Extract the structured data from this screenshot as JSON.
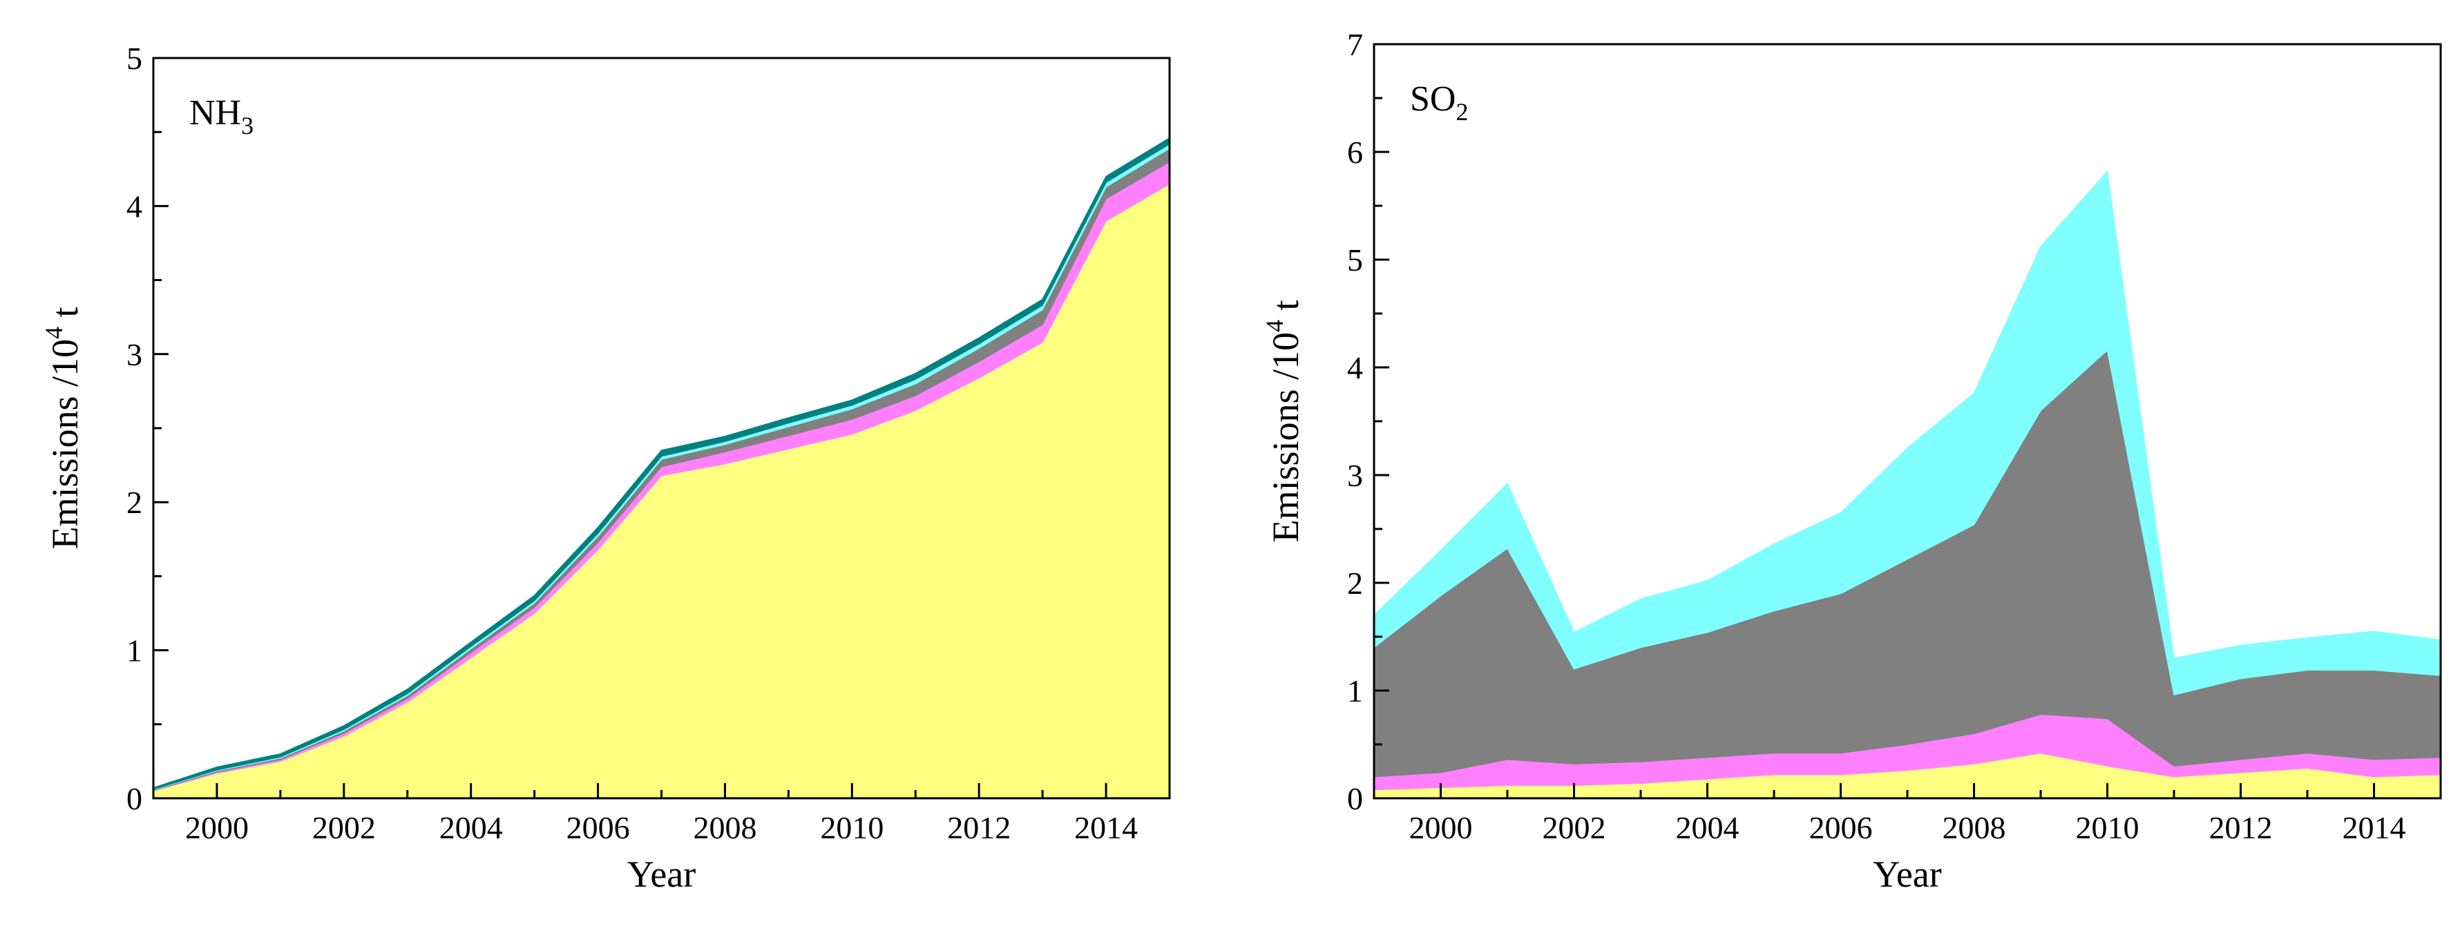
{
  "chart_data": [
    {
      "type": "area",
      "stacked": true,
      "label_main": "NH",
      "label_sub": "3",
      "xlabel": "Year",
      "ylabel_main": "Emissions /10",
      "ylabel_sup": "4",
      "ylabel_unit": " t",
      "xlim": [
        1999,
        2015
      ],
      "ylim": [
        0,
        5
      ],
      "xticks": [
        2000,
        2002,
        2004,
        2006,
        2008,
        2010,
        2012,
        2014
      ],
      "yticks": [
        0,
        1,
        2,
        3,
        4,
        5
      ],
      "x": [
        1999,
        2000,
        2001,
        2002,
        2003,
        2004,
        2005,
        2006,
        2007,
        2008,
        2009,
        2010,
        2011,
        2012,
        2013,
        2014,
        2015
      ],
      "series": [
        {
          "name": "yellow",
          "color": "#FFFF80",
          "values": [
            0.05,
            0.17,
            0.25,
            0.42,
            0.65,
            0.95,
            1.25,
            1.68,
            2.18,
            2.26,
            2.36,
            2.46,
            2.62,
            2.84,
            3.08,
            3.9,
            4.15
          ]
        },
        {
          "name": "magenta",
          "color": "#FF80FF",
          "values": [
            0.004,
            0.008,
            0.012,
            0.02,
            0.025,
            0.035,
            0.04,
            0.05,
            0.06,
            0.08,
            0.09,
            0.1,
            0.1,
            0.11,
            0.12,
            0.15,
            0.15
          ]
        },
        {
          "name": "gray",
          "color": "#808080",
          "values": [
            0.004,
            0.008,
            0.01,
            0.015,
            0.02,
            0.025,
            0.03,
            0.04,
            0.05,
            0.05,
            0.06,
            0.07,
            0.08,
            0.09,
            0.1,
            0.08,
            0.09
          ]
        },
        {
          "name": "cyan",
          "color": "#80FFFF",
          "values": [
            0.003,
            0.005,
            0.008,
            0.01,
            0.012,
            0.015,
            0.015,
            0.02,
            0.02,
            0.02,
            0.025,
            0.025,
            0.03,
            0.03,
            0.03,
            0.03,
            0.03
          ]
        },
        {
          "name": "teal",
          "color": "#008080",
          "values": [
            0.01,
            0.02,
            0.02,
            0.025,
            0.03,
            0.03,
            0.035,
            0.04,
            0.04,
            0.035,
            0.035,
            0.035,
            0.04,
            0.04,
            0.04,
            0.04,
            0.04
          ]
        }
      ]
    },
    {
      "type": "area",
      "stacked": true,
      "label_main": "SO",
      "label_sub": "2",
      "xlabel": "Year",
      "ylabel_main": "Emissions /10",
      "ylabel_sup": "4",
      "ylabel_unit": " t",
      "xlim": [
        1999,
        2015
      ],
      "ylim": [
        0,
        7
      ],
      "xticks": [
        2000,
        2002,
        2004,
        2006,
        2008,
        2010,
        2012,
        2014
      ],
      "yticks": [
        0,
        1,
        2,
        3,
        4,
        5,
        6,
        7
      ],
      "x": [
        1999,
        2000,
        2001,
        2002,
        2003,
        2004,
        2005,
        2006,
        2007,
        2008,
        2009,
        2010,
        2011,
        2012,
        2013,
        2014,
        2015
      ],
      "series": [
        {
          "name": "yellow",
          "color": "#FFFF80",
          "values": [
            0.08,
            0.1,
            0.12,
            0.12,
            0.14,
            0.18,
            0.22,
            0.22,
            0.26,
            0.32,
            0.42,
            0.3,
            0.2,
            0.24,
            0.28,
            0.2,
            0.22
          ]
        },
        {
          "name": "magenta",
          "color": "#FF80FF",
          "values": [
            0.12,
            0.14,
            0.24,
            0.2,
            0.2,
            0.2,
            0.2,
            0.2,
            0.24,
            0.28,
            0.36,
            0.44,
            0.1,
            0.12,
            0.14,
            0.16,
            0.16
          ]
        },
        {
          "name": "gray",
          "color": "#808080",
          "values": [
            1.2,
            1.64,
            1.96,
            0.88,
            1.06,
            1.16,
            1.32,
            1.48,
            1.72,
            1.94,
            2.82,
            3.42,
            0.66,
            0.75,
            0.77,
            0.83,
            0.76
          ]
        },
        {
          "name": "cyan",
          "color": "#80FFFF",
          "values": [
            0.3,
            0.42,
            0.6,
            0.34,
            0.45,
            0.48,
            0.62,
            0.75,
            1.03,
            1.22,
            1.52,
            1.66,
            0.34,
            0.31,
            0.3,
            0.36,
            0.33
          ]
        }
      ]
    }
  ]
}
